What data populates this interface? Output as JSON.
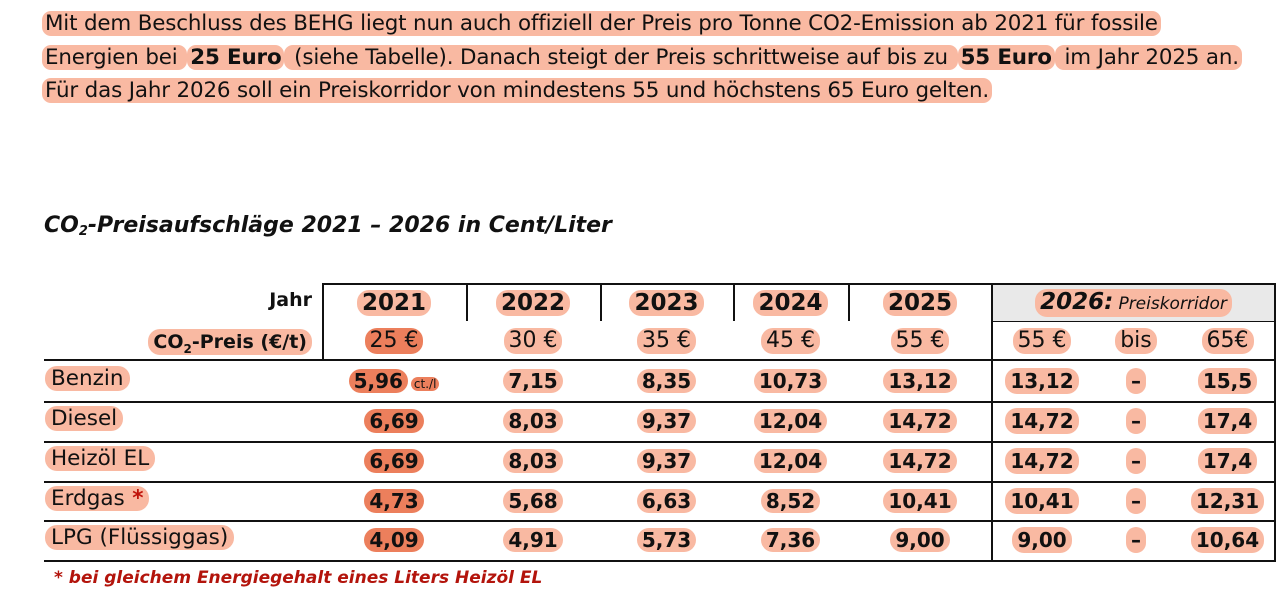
{
  "intro": {
    "t1": "Mit dem Beschluss des BEHG liegt nun auch offiziell der Preis pro Tonne CO2-Emission ab 2021  für fossile Energien bei ",
    "b1": "25 Euro",
    "t2": " (siehe Tabelle). Danach steigt der Preis schrittweise auf bis zu ",
    "b2": "55 Euro",
    "t3": " im Jahr 2025 an. Für das Jahr 2026 soll ein Preiskorridor von mindestens 55 und höchstens 65 Euro gelten."
  },
  "table_title": {
    "pre": "CO",
    "sub": "2",
    "post": "-Preisaufschläge 2021 – 2026 in Cent/Liter"
  },
  "header": {
    "jahr_label": "Jahr",
    "co2_label_pre": "CO",
    "co2_label_sub": "2",
    "co2_label_post": "-Preis (€/t)",
    "years": [
      "2021",
      "2022",
      "2023",
      "2024",
      "2025"
    ],
    "year_2026": "2026:",
    "corridor_label": "Preiskorridor",
    "prices": [
      "25 €",
      "30 €",
      "35 €",
      "45 €",
      "55 €"
    ],
    "price_2026_min": "55 €",
    "price_2026_bis": "bis",
    "price_2026_max": "65€"
  },
  "unit_label": "ct./l",
  "rows": [
    {
      "label": "Benzin",
      "star": "",
      "values": [
        "5,96",
        "7,15",
        "8,35",
        "10,73",
        "13,12"
      ],
      "min": "13,12",
      "dash": "–",
      "max": "15,5"
    },
    {
      "label": "Diesel",
      "star": "",
      "values": [
        "6,69",
        "8,03",
        "9,37",
        "12,04",
        "14,72"
      ],
      "min": "14,72",
      "dash": "–",
      "max": "17,4"
    },
    {
      "label": "Heizöl EL",
      "star": "",
      "values": [
        "6,69",
        "8,03",
        "9,37",
        "12,04",
        "14,72"
      ],
      "min": "14,72",
      "dash": "–",
      "max": "17,4"
    },
    {
      "label": "Erdgas",
      "star": "*",
      "values": [
        "4,73",
        "5,68",
        "6,63",
        "8,52",
        "10,41"
      ],
      "min": "10,41",
      "dash": "–",
      "max": "12,31"
    },
    {
      "label": "LPG (Flüssiggas)",
      "star": "",
      "values": [
        "4,09",
        "4,91",
        "5,73",
        "7,36",
        "9,00"
      ],
      "min": "9,00",
      "dash": "–",
      "max": "10,64"
    }
  ],
  "footnote": "* bei gleichem Energiegehalt eines Liters Heizöl EL",
  "colors": {
    "highlight": "#f9b9a2",
    "highlight_dark": "#ec7f5c",
    "footnote": "#b3140c",
    "corridor_bg": "#e9e9e9"
  }
}
